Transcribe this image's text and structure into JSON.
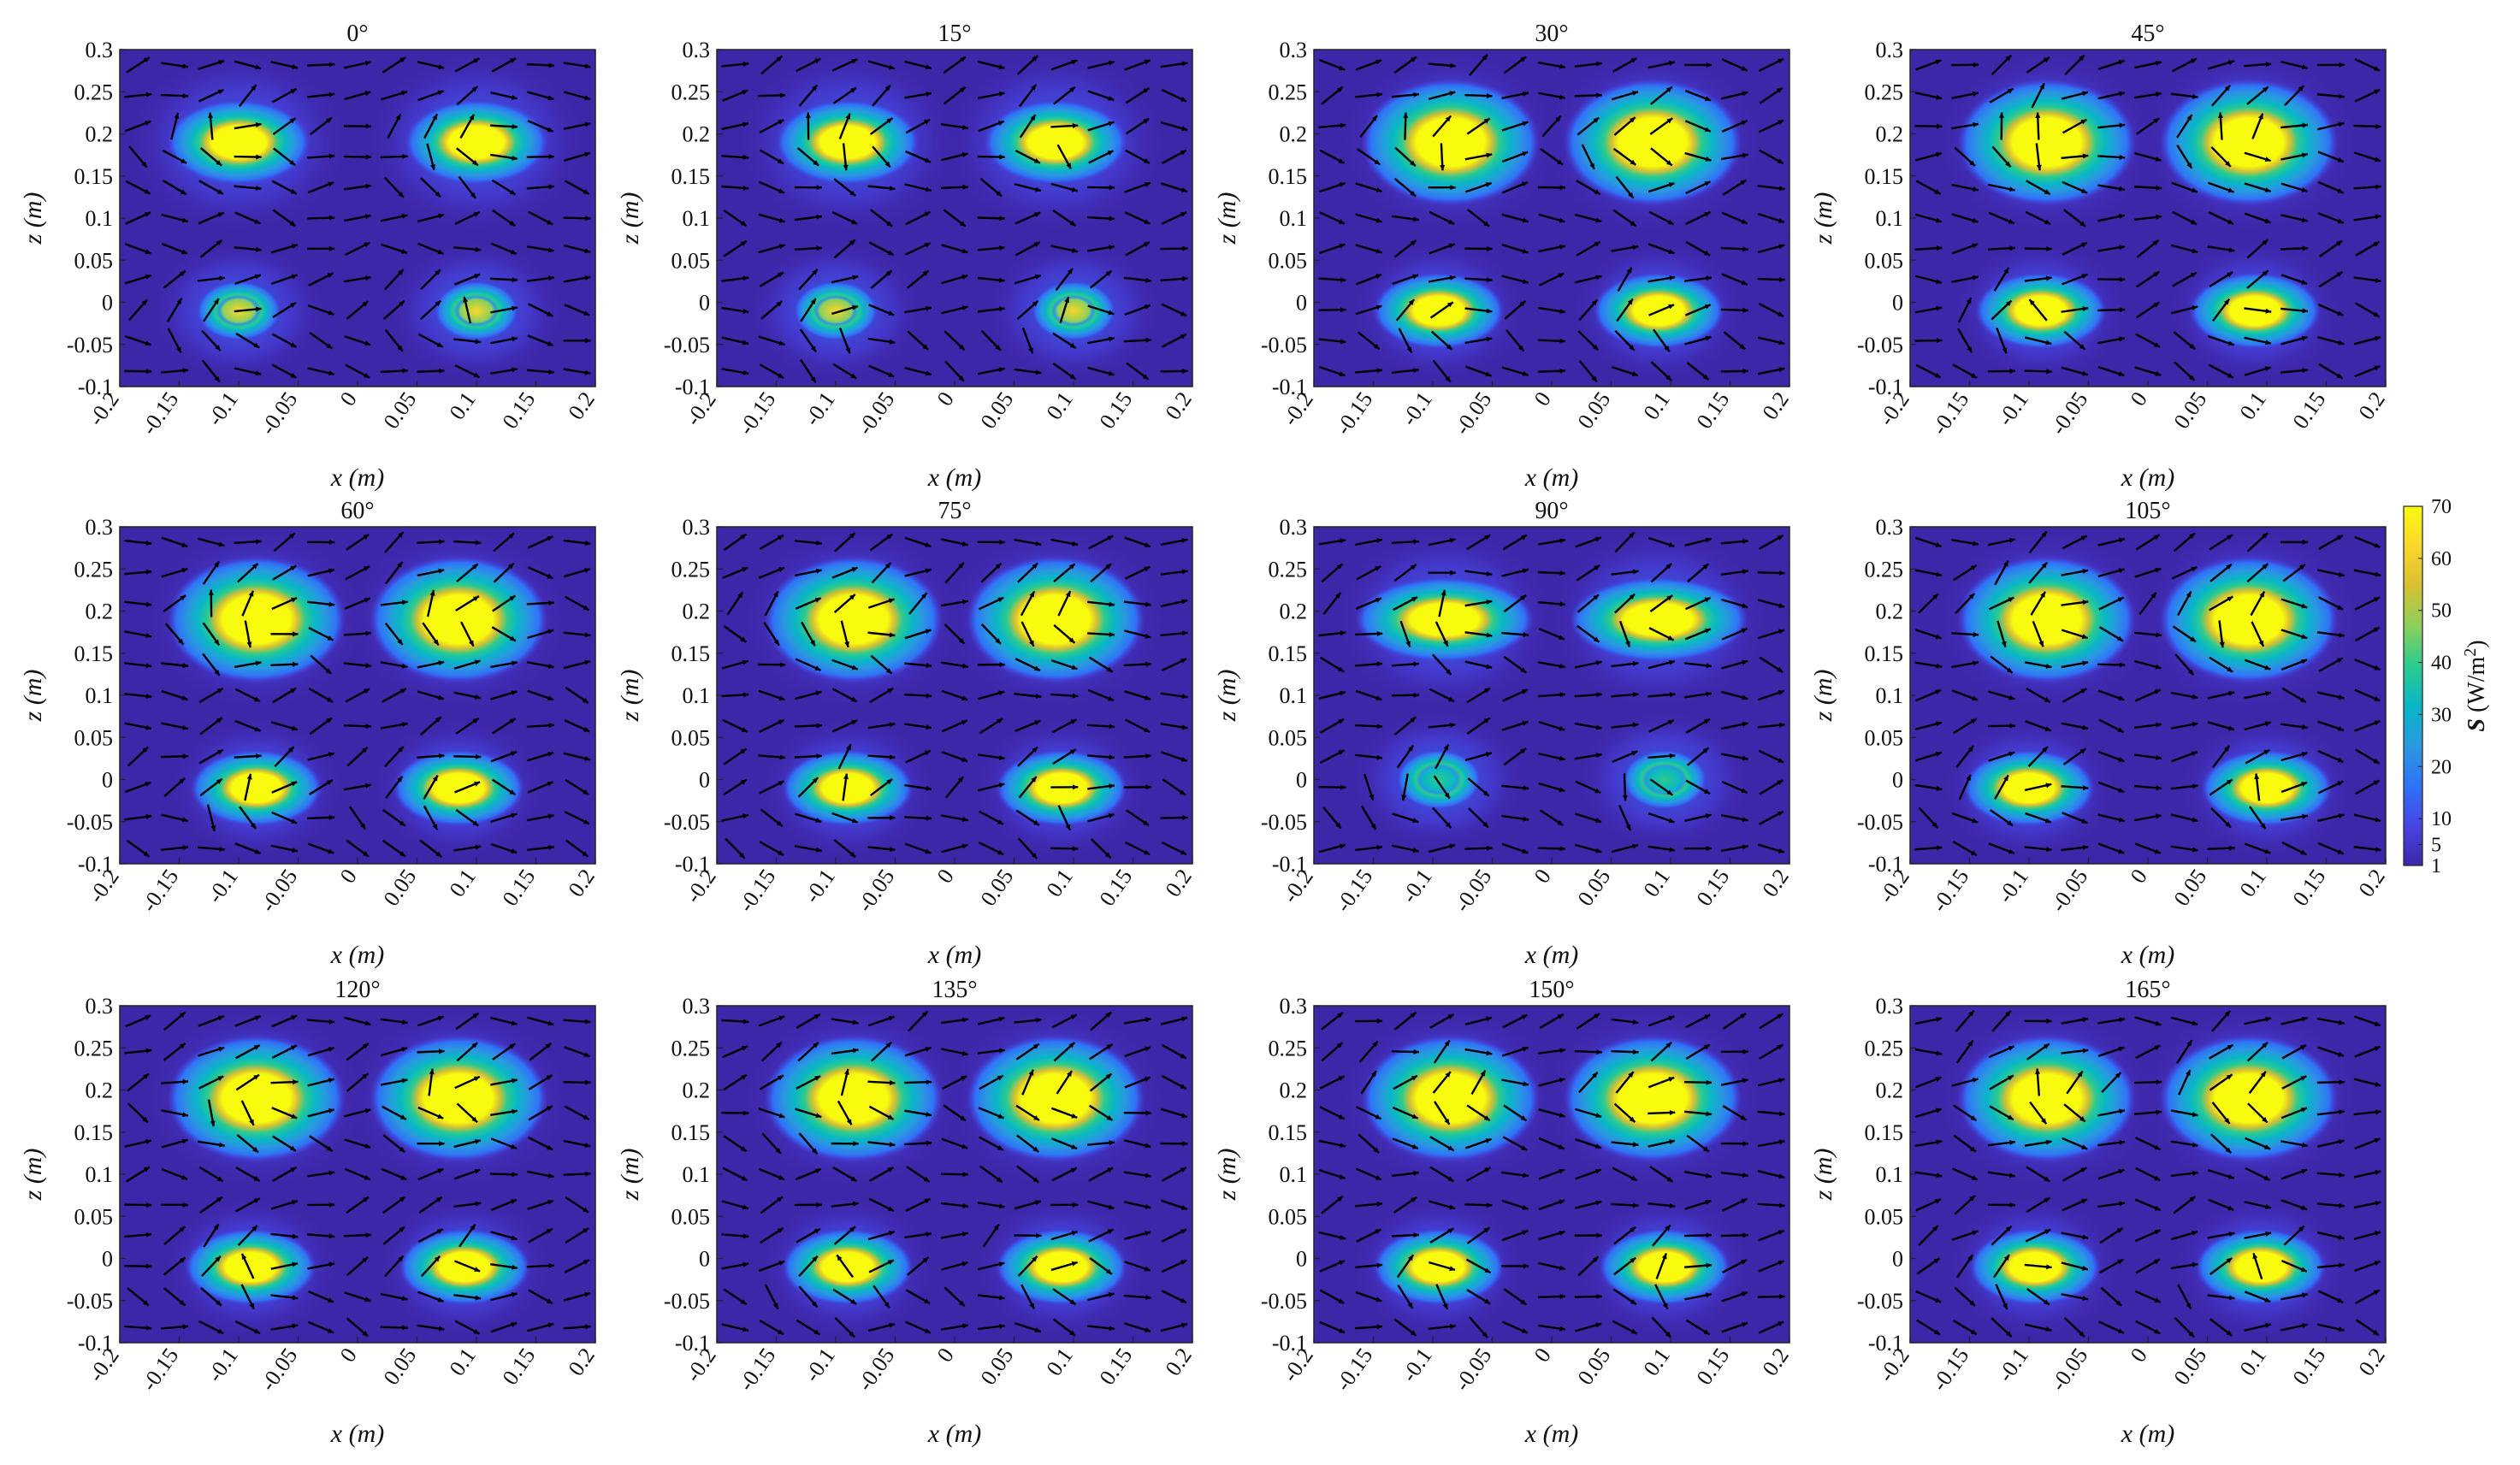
{
  "figure": {
    "colorbar": {
      "label": "S (W/m²)",
      "label_symbol": "S",
      "label_unit": "(W/m",
      "label_exp": "2",
      "label_close": ")",
      "ticks": [
        1,
        5,
        10,
        20,
        30,
        40,
        50,
        60,
        70
      ],
      "range": [
        1,
        70
      ],
      "colormap": [
        "#3e26a8",
        "#4745e3",
        "#2f73f8",
        "#2a98e0",
        "#08b7c6",
        "#2ccb8e",
        "#8bd05b",
        "#d7c033",
        "#fbd52b",
        "#f9fb0e"
      ]
    }
  },
  "chart_data": [
    {
      "type": "heatmap",
      "title": "0°",
      "xlabel": "x (m)",
      "ylabel": "z (m)",
      "xlim": [
        -0.2,
        0.2
      ],
      "ylim": [
        -0.1,
        0.3
      ],
      "xticks": [
        "-0.2",
        "-0.15",
        "-0.1",
        "-0.05",
        "0",
        "0.05",
        "0.1",
        "0.15",
        "0.2"
      ],
      "yticks": [
        "0.3",
        "0.25",
        "0.2",
        "0.15",
        "0.1",
        "0.05",
        "0",
        "-0.05",
        "-0.1"
      ],
      "hotspots": [
        {
          "x": -0.1,
          "z": 0.19,
          "peak_S": 70
        },
        {
          "x": 0.1,
          "z": 0.19,
          "peak_S": 70
        },
        {
          "x": -0.1,
          "z": -0.01,
          "peak_S": 50
        },
        {
          "x": 0.1,
          "z": -0.01,
          "peak_S": 50
        }
      ]
    },
    {
      "type": "heatmap",
      "title": "15°",
      "xlabel": "x (m)",
      "ylabel": "z (m)",
      "xlim": [
        -0.2,
        0.2
      ],
      "ylim": [
        -0.1,
        0.3
      ],
      "xticks": [
        "-0.2",
        "-0.15",
        "-0.1",
        "-0.05",
        "0",
        "0.05",
        "0.1",
        "0.15",
        "0.2"
      ],
      "yticks": [
        "0.3",
        "0.25",
        "0.2",
        "0.15",
        "0.1",
        "0.05",
        "0",
        "-0.05",
        "-0.1"
      ],
      "hotspots": [
        {
          "x": -0.09,
          "z": 0.19,
          "peak_S": 70
        },
        {
          "x": 0.085,
          "z": 0.19,
          "peak_S": 70
        },
        {
          "x": -0.1,
          "z": -0.01,
          "peak_S": 55
        },
        {
          "x": 0.1,
          "z": -0.01,
          "peak_S": 55
        }
      ]
    },
    {
      "type": "heatmap",
      "title": "30°",
      "xlabel": "x (m)",
      "ylabel": "z (m)",
      "xlim": [
        -0.2,
        0.2
      ],
      "ylim": [
        -0.1,
        0.3
      ],
      "xticks": [
        "-0.2",
        "-0.15",
        "-0.1",
        "-0.05",
        "0",
        "0.05",
        "0.1",
        "0.15",
        "0.2"
      ],
      "yticks": [
        "0.3",
        "0.25",
        "0.2",
        "0.15",
        "0.1",
        "0.05",
        "0",
        "-0.05",
        "-0.1"
      ],
      "hotspots": [
        {
          "x": -0.085,
          "z": 0.19,
          "peak_S": 70
        },
        {
          "x": 0.085,
          "z": 0.19,
          "peak_S": 70
        },
        {
          "x": -0.095,
          "z": -0.01,
          "peak_S": 70
        },
        {
          "x": 0.09,
          "z": -0.01,
          "peak_S": 70
        }
      ]
    },
    {
      "type": "heatmap",
      "title": "45°",
      "xlabel": "x (m)",
      "ylabel": "z (m)",
      "xlim": [
        -0.2,
        0.2
      ],
      "ylim": [
        -0.1,
        0.3
      ],
      "xticks": [
        "-0.2",
        "-0.15",
        "-0.1",
        "-0.05",
        "0",
        "0.05",
        "0.1",
        "0.15",
        "0.2"
      ],
      "yticks": [
        "0.3",
        "0.25",
        "0.2",
        "0.15",
        "0.1",
        "0.05",
        "0",
        "-0.05",
        "-0.1"
      ],
      "hotspots": [
        {
          "x": -0.085,
          "z": 0.19,
          "peak_S": 70
        },
        {
          "x": 0.085,
          "z": 0.19,
          "peak_S": 70
        },
        {
          "x": -0.09,
          "z": -0.01,
          "peak_S": 70
        },
        {
          "x": 0.09,
          "z": -0.01,
          "peak_S": 70
        }
      ]
    },
    {
      "type": "heatmap",
      "title": "60°",
      "xlabel": "x (m)",
      "ylabel": "z (m)",
      "xlim": [
        -0.2,
        0.2
      ],
      "ylim": [
        -0.1,
        0.3
      ],
      "xticks": [
        "-0.2",
        "-0.15",
        "-0.1",
        "-0.05",
        "0",
        "0.05",
        "0.1",
        "0.15",
        "0.2"
      ],
      "yticks": [
        "0.3",
        "0.25",
        "0.2",
        "0.15",
        "0.1",
        "0.05",
        "0",
        "-0.05",
        "-0.1"
      ],
      "hotspots": [
        {
          "x": -0.085,
          "z": 0.19,
          "peak_S": 70
        },
        {
          "x": 0.085,
          "z": 0.19,
          "peak_S": 70
        },
        {
          "x": -0.085,
          "z": -0.01,
          "peak_S": 70
        },
        {
          "x": 0.085,
          "z": -0.01,
          "peak_S": 70
        }
      ]
    },
    {
      "type": "heatmap",
      "title": "75°",
      "xlabel": "x (m)",
      "ylabel": "z (m)",
      "xlim": [
        -0.2,
        0.2
      ],
      "ylim": [
        -0.1,
        0.3
      ],
      "xticks": [
        "-0.2",
        "-0.15",
        "-0.1",
        "-0.05",
        "0",
        "0.05",
        "0.1",
        "0.15",
        "0.2"
      ],
      "yticks": [
        "0.3",
        "0.25",
        "0.2",
        "0.15",
        "0.1",
        "0.05",
        "0",
        "-0.05",
        "-0.1"
      ],
      "hotspots": [
        {
          "x": -0.085,
          "z": 0.19,
          "peak_S": 70
        },
        {
          "x": 0.085,
          "z": 0.19,
          "peak_S": 70
        },
        {
          "x": -0.09,
          "z": -0.01,
          "peak_S": 70
        },
        {
          "x": 0.09,
          "z": -0.01,
          "peak_S": 70
        }
      ]
    },
    {
      "type": "heatmap",
      "title": "90°",
      "xlabel": "x (m)",
      "ylabel": "z (m)",
      "xlim": [
        -0.2,
        0.2
      ],
      "ylim": [
        -0.1,
        0.3
      ],
      "xticks": [
        "-0.2",
        "-0.15",
        "-0.1",
        "-0.05",
        "0",
        "0.05",
        "0.1",
        "0.15",
        "0.2"
      ],
      "yticks": [
        "0.3",
        "0.25",
        "0.2",
        "0.15",
        "0.1",
        "0.05",
        "0",
        "-0.05",
        "-0.1"
      ],
      "hotspots": [
        {
          "x": -0.09,
          "z": 0.19,
          "peak_S": 70
        },
        {
          "x": 0.09,
          "z": 0.19,
          "peak_S": 70
        },
        {
          "x": -0.095,
          "z": 0.0,
          "peak_S": 15
        },
        {
          "x": 0.095,
          "z": 0.0,
          "peak_S": 15
        }
      ]
    },
    {
      "type": "heatmap",
      "title": "105°",
      "xlabel": "x (m)",
      "ylabel": "z (m)",
      "xlim": [
        -0.2,
        0.2
      ],
      "ylim": [
        -0.1,
        0.3
      ],
      "xticks": [
        "-0.2",
        "-0.15",
        "-0.1",
        "-0.05",
        "0",
        "0.05",
        "0.1",
        "0.15",
        "0.2"
      ],
      "yticks": [
        "0.3",
        "0.25",
        "0.2",
        "0.15",
        "0.1",
        "0.05",
        "0",
        "-0.05",
        "-0.1"
      ],
      "hotspots": [
        {
          "x": -0.085,
          "z": 0.19,
          "peak_S": 70
        },
        {
          "x": 0.085,
          "z": 0.19,
          "peak_S": 70
        },
        {
          "x": -0.1,
          "z": -0.01,
          "peak_S": 70
        },
        {
          "x": 0.1,
          "z": -0.01,
          "peak_S": 70
        }
      ]
    },
    {
      "type": "heatmap",
      "title": "120°",
      "xlabel": "x (m)",
      "ylabel": "z (m)",
      "xlim": [
        -0.2,
        0.2
      ],
      "ylim": [
        -0.1,
        0.3
      ],
      "xticks": [
        "-0.2",
        "-0.15",
        "-0.1",
        "-0.05",
        "0",
        "0.05",
        "0.1",
        "0.15",
        "0.2"
      ],
      "yticks": [
        "0.3",
        "0.25",
        "0.2",
        "0.15",
        "0.1",
        "0.05",
        "0",
        "-0.05",
        "-0.1"
      ],
      "hotspots": [
        {
          "x": -0.085,
          "z": 0.19,
          "peak_S": 70
        },
        {
          "x": 0.085,
          "z": 0.19,
          "peak_S": 70
        },
        {
          "x": -0.09,
          "z": -0.01,
          "peak_S": 70
        },
        {
          "x": 0.09,
          "z": -0.01,
          "peak_S": 70
        }
      ]
    },
    {
      "type": "heatmap",
      "title": "135°",
      "xlabel": "x (m)",
      "ylabel": "z (m)",
      "xlim": [
        -0.2,
        0.2
      ],
      "ylim": [
        -0.1,
        0.3
      ],
      "xticks": [
        "-0.2",
        "-0.15",
        "-0.1",
        "-0.05",
        "0",
        "0.05",
        "0.1",
        "0.15",
        "0.2"
      ],
      "yticks": [
        "0.3",
        "0.25",
        "0.2",
        "0.15",
        "0.1",
        "0.05",
        "0",
        "-0.05",
        "-0.1"
      ],
      "hotspots": [
        {
          "x": -0.085,
          "z": 0.19,
          "peak_S": 70
        },
        {
          "x": 0.085,
          "z": 0.19,
          "peak_S": 70
        },
        {
          "x": -0.09,
          "z": -0.01,
          "peak_S": 70
        },
        {
          "x": 0.09,
          "z": -0.01,
          "peak_S": 70
        }
      ]
    },
    {
      "type": "heatmap",
      "title": "150°",
      "xlabel": "x (m)",
      "ylabel": "z (m)",
      "xlim": [
        -0.2,
        0.2
      ],
      "ylim": [
        -0.1,
        0.3
      ],
      "xticks": [
        "-0.2",
        "-0.15",
        "-0.1",
        "-0.05",
        "0",
        "0.05",
        "0.1",
        "0.15",
        "0.2"
      ],
      "yticks": [
        "0.3",
        "0.25",
        "0.2",
        "0.15",
        "0.1",
        "0.05",
        "0",
        "-0.05",
        "-0.1"
      ],
      "hotspots": [
        {
          "x": -0.085,
          "z": 0.19,
          "peak_S": 70
        },
        {
          "x": 0.085,
          "z": 0.19,
          "peak_S": 70
        },
        {
          "x": -0.095,
          "z": -0.01,
          "peak_S": 70
        },
        {
          "x": 0.095,
          "z": -0.01,
          "peak_S": 70
        }
      ]
    },
    {
      "type": "heatmap",
      "title": "165°",
      "xlabel": "x (m)",
      "ylabel": "z (m)",
      "xlim": [
        -0.2,
        0.2
      ],
      "ylim": [
        -0.1,
        0.3
      ],
      "xticks": [
        "-0.2",
        "-0.15",
        "-0.1",
        "-0.05",
        "0",
        "0.05",
        "0.1",
        "0.15",
        "0.2"
      ],
      "yticks": [
        "0.3",
        "0.25",
        "0.2",
        "0.15",
        "0.1",
        "0.05",
        "0",
        "-0.05",
        "-0.1"
      ],
      "hotspots": [
        {
          "x": -0.085,
          "z": 0.19,
          "peak_S": 70
        },
        {
          "x": 0.085,
          "z": 0.19,
          "peak_S": 70
        },
        {
          "x": -0.095,
          "z": -0.01,
          "peak_S": 70
        },
        {
          "x": 0.095,
          "z": -0.01,
          "peak_S": 70
        }
      ]
    }
  ]
}
